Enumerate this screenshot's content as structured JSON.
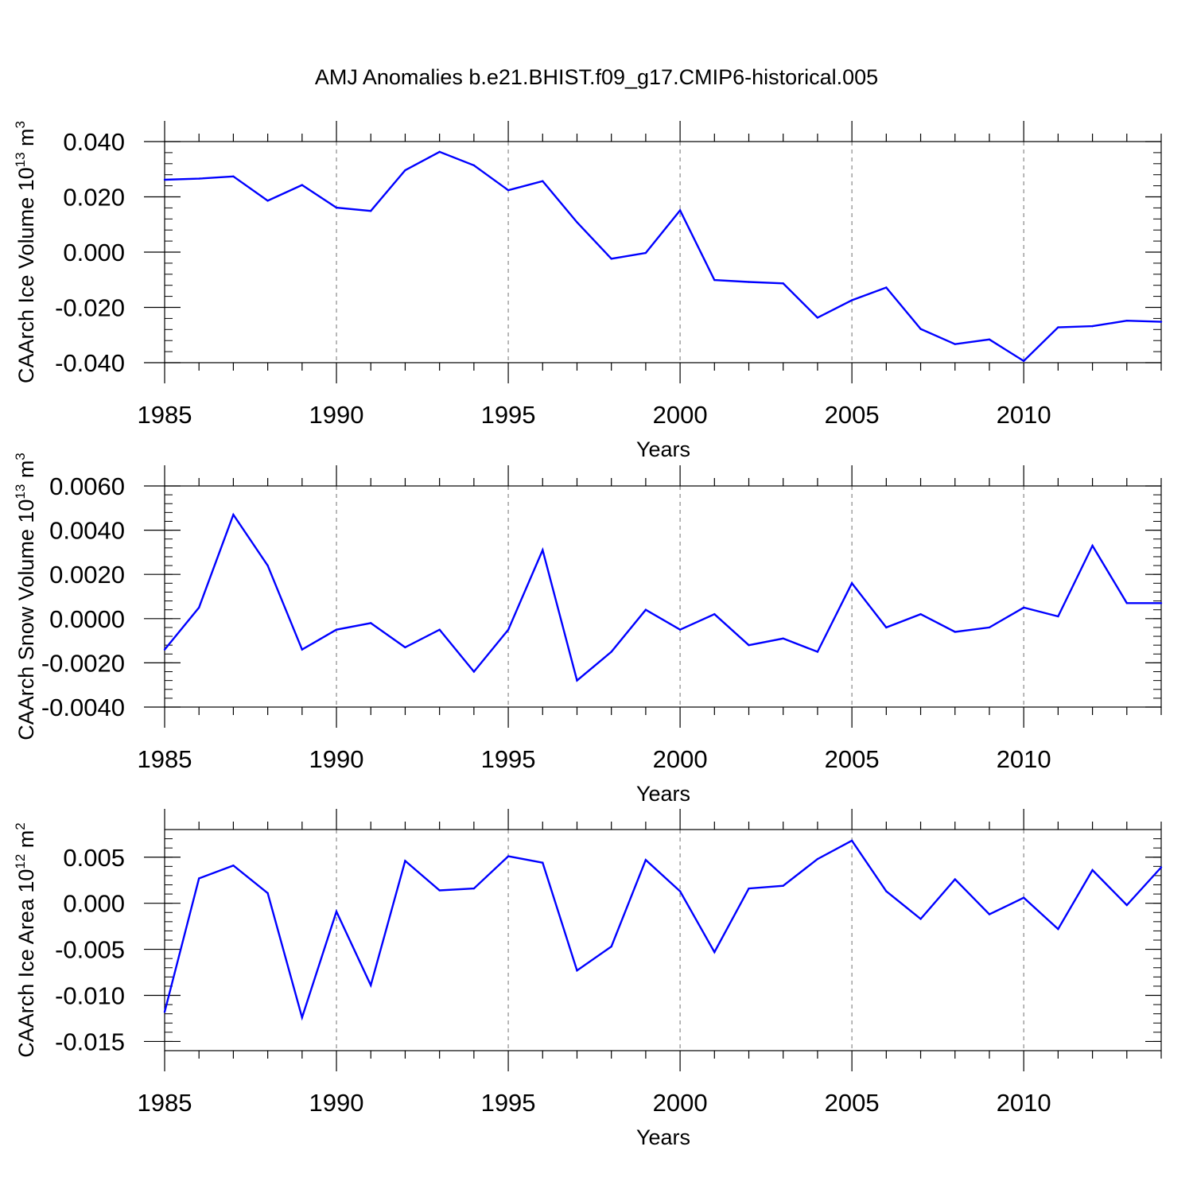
{
  "title": "AMJ Anomalies b.e21.BHIST.f09_g17.CMIP6-historical.005",
  "colors": {
    "line": "#0000ff",
    "axis": "#000000",
    "grid": "#888888"
  },
  "chart_data": [
    {
      "type": "line",
      "ylabel_main": "CAArch Ice Volume 10",
      "ylabel_exp": "13",
      "ylabel_unit": "m",
      "ylabel_unit_exp": "3",
      "xlabel": "Years",
      "xlim": [
        1985,
        2014
      ],
      "ylim": [
        -0.04,
        0.04
      ],
      "yticks": [
        -0.04,
        -0.02,
        0.0,
        0.02,
        0.04
      ],
      "yticklabels": [
        "-0.040",
        "-0.020",
        "0.000",
        "0.020",
        "0.040"
      ],
      "xticks": [
        1985,
        1990,
        1995,
        2000,
        2005,
        2010
      ],
      "xticklabels": [
        "1985",
        "1990",
        "1995",
        "2000",
        "2005",
        "2010"
      ],
      "grid_x": [
        1990,
        1995,
        2000,
        2005,
        2010
      ],
      "x": [
        1985,
        1986,
        1987,
        1988,
        1989,
        1990,
        1991,
        1992,
        1993,
        1994,
        1995,
        1996,
        1997,
        1998,
        1999,
        2000,
        2001,
        2002,
        2003,
        2004,
        2005,
        2006,
        2007,
        2008,
        2009,
        2010,
        2011,
        2012,
        2013,
        2014
      ],
      "values": [
        0.0262,
        0.0266,
        0.0274,
        0.0186,
        0.0243,
        0.0161,
        0.0149,
        0.0296,
        0.0363,
        0.0314,
        0.0224,
        0.0257,
        0.0108,
        -0.0024,
        -0.0003,
        0.0151,
        -0.0101,
        -0.0108,
        -0.0113,
        -0.0237,
        -0.0174,
        -0.0128,
        -0.0278,
        -0.0333,
        -0.0316,
        -0.0394,
        -0.0272,
        -0.0268,
        -0.0248,
        -0.0252
      ]
    },
    {
      "type": "line",
      "ylabel_main": "CAArch Snow Volume 10",
      "ylabel_exp": "13",
      "ylabel_unit": "m",
      "ylabel_unit_exp": "3",
      "xlabel": "Years",
      "xlim": [
        1985,
        2014
      ],
      "ylim": [
        -0.004,
        0.006
      ],
      "yticks": [
        -0.004,
        -0.002,
        0.0,
        0.002,
        0.004,
        0.006
      ],
      "yticklabels": [
        "-0.0040",
        "-0.0020",
        "0.0000",
        "0.0020",
        "0.0040",
        "0.0060"
      ],
      "xticks": [
        1985,
        1990,
        1995,
        2000,
        2005,
        2010
      ],
      "xticklabels": [
        "1985",
        "1990",
        "1995",
        "2000",
        "2005",
        "2010"
      ],
      "grid_x": [
        1990,
        1995,
        2000,
        2005,
        2010
      ],
      "x": [
        1985,
        1986,
        1987,
        1988,
        1989,
        1990,
        1991,
        1992,
        1993,
        1994,
        1995,
        1996,
        1997,
        1998,
        1999,
        2000,
        2001,
        2002,
        2003,
        2004,
        2005,
        2006,
        2007,
        2008,
        2009,
        2010,
        2011,
        2012,
        2013,
        2014
      ],
      "values": [
        -0.0014,
        0.0005,
        0.0047,
        0.0024,
        -0.0014,
        -0.0005,
        -0.0002,
        -0.0013,
        -0.0005,
        -0.0024,
        -0.0005,
        0.0031,
        -0.0028,
        -0.0015,
        0.0004,
        -0.0005,
        0.0002,
        -0.0012,
        -0.0009,
        -0.0015,
        0.0016,
        -0.0004,
        0.0002,
        -0.0006,
        -0.0004,
        0.0005,
        0.0001,
        0.0033,
        0.0007,
        0.0007
      ]
    },
    {
      "type": "line",
      "ylabel_main": "CAArch Ice Area 10",
      "ylabel_exp": "12",
      "ylabel_unit": "m",
      "ylabel_unit_exp": "2",
      "xlabel": "Years",
      "xlim": [
        1985,
        2014
      ],
      "ylim": [
        -0.016,
        0.008
      ],
      "yticks": [
        -0.015,
        -0.01,
        -0.005,
        0.0,
        0.005
      ],
      "yticklabels": [
        "-0.015",
        "-0.010",
        "-0.005",
        "0.000",
        "0.005"
      ],
      "xticks": [
        1985,
        1990,
        1995,
        2000,
        2005,
        2010
      ],
      "xticklabels": [
        "1985",
        "1990",
        "1995",
        "2000",
        "2005",
        "2010"
      ],
      "grid_x": [
        1990,
        1995,
        2000,
        2005,
        2010
      ],
      "x": [
        1985,
        1986,
        1987,
        1988,
        1989,
        1990,
        1991,
        1992,
        1993,
        1994,
        1995,
        1996,
        1997,
        1998,
        1999,
        2000,
        2001,
        2002,
        2003,
        2004,
        2005,
        2006,
        2007,
        2008,
        2009,
        2010,
        2011,
        2012,
        2013,
        2014
      ],
      "values": [
        -0.0118,
        0.0027,
        0.0041,
        0.0011,
        -0.0124,
        -0.0009,
        -0.0089,
        0.0046,
        0.0014,
        0.0016,
        0.0051,
        0.0044,
        -0.0073,
        -0.0047,
        0.0047,
        0.0013,
        -0.0053,
        0.0016,
        0.0019,
        0.0048,
        0.0068,
        0.0013,
        -0.0017,
        0.0026,
        -0.0012,
        0.0006,
        -0.0028,
        0.0036,
        -0.0002,
        0.0039
      ]
    }
  ]
}
